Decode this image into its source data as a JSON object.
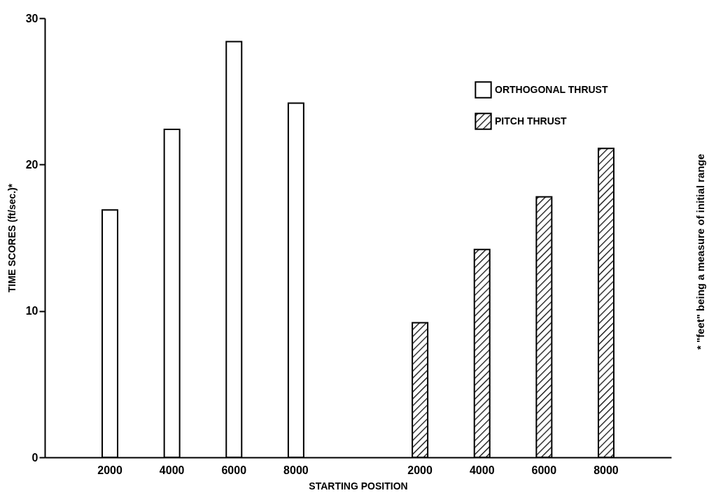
{
  "chart_data": {
    "type": "bar",
    "ylabel": "TIME SCORES (ft/sec.)*",
    "xlabel": "STARTING POSITION",
    "categories": [
      "2000",
      "4000",
      "6000",
      "8000",
      null,
      "2000",
      "4000",
      "6000",
      "8000"
    ],
    "series": [
      {
        "name": "ORTHOGONAL THRUST",
        "color": "#ffffff",
        "values": [
          16.9,
          22.4,
          28.4,
          24.2,
          null,
          null,
          null,
          null,
          null
        ]
      },
      {
        "name": "PITCH THRUST",
        "color": "#000000",
        "values": [
          null,
          null,
          null,
          null,
          null,
          9.2,
          14.2,
          17.8,
          21.1
        ]
      }
    ],
    "ylim": [
      0,
      30
    ],
    "yticks": [
      0,
      10,
      20,
      30
    ],
    "grid": false,
    "legend": "top right",
    "annotations": [
      "* \"feet\" being a measure of initial range"
    ]
  }
}
